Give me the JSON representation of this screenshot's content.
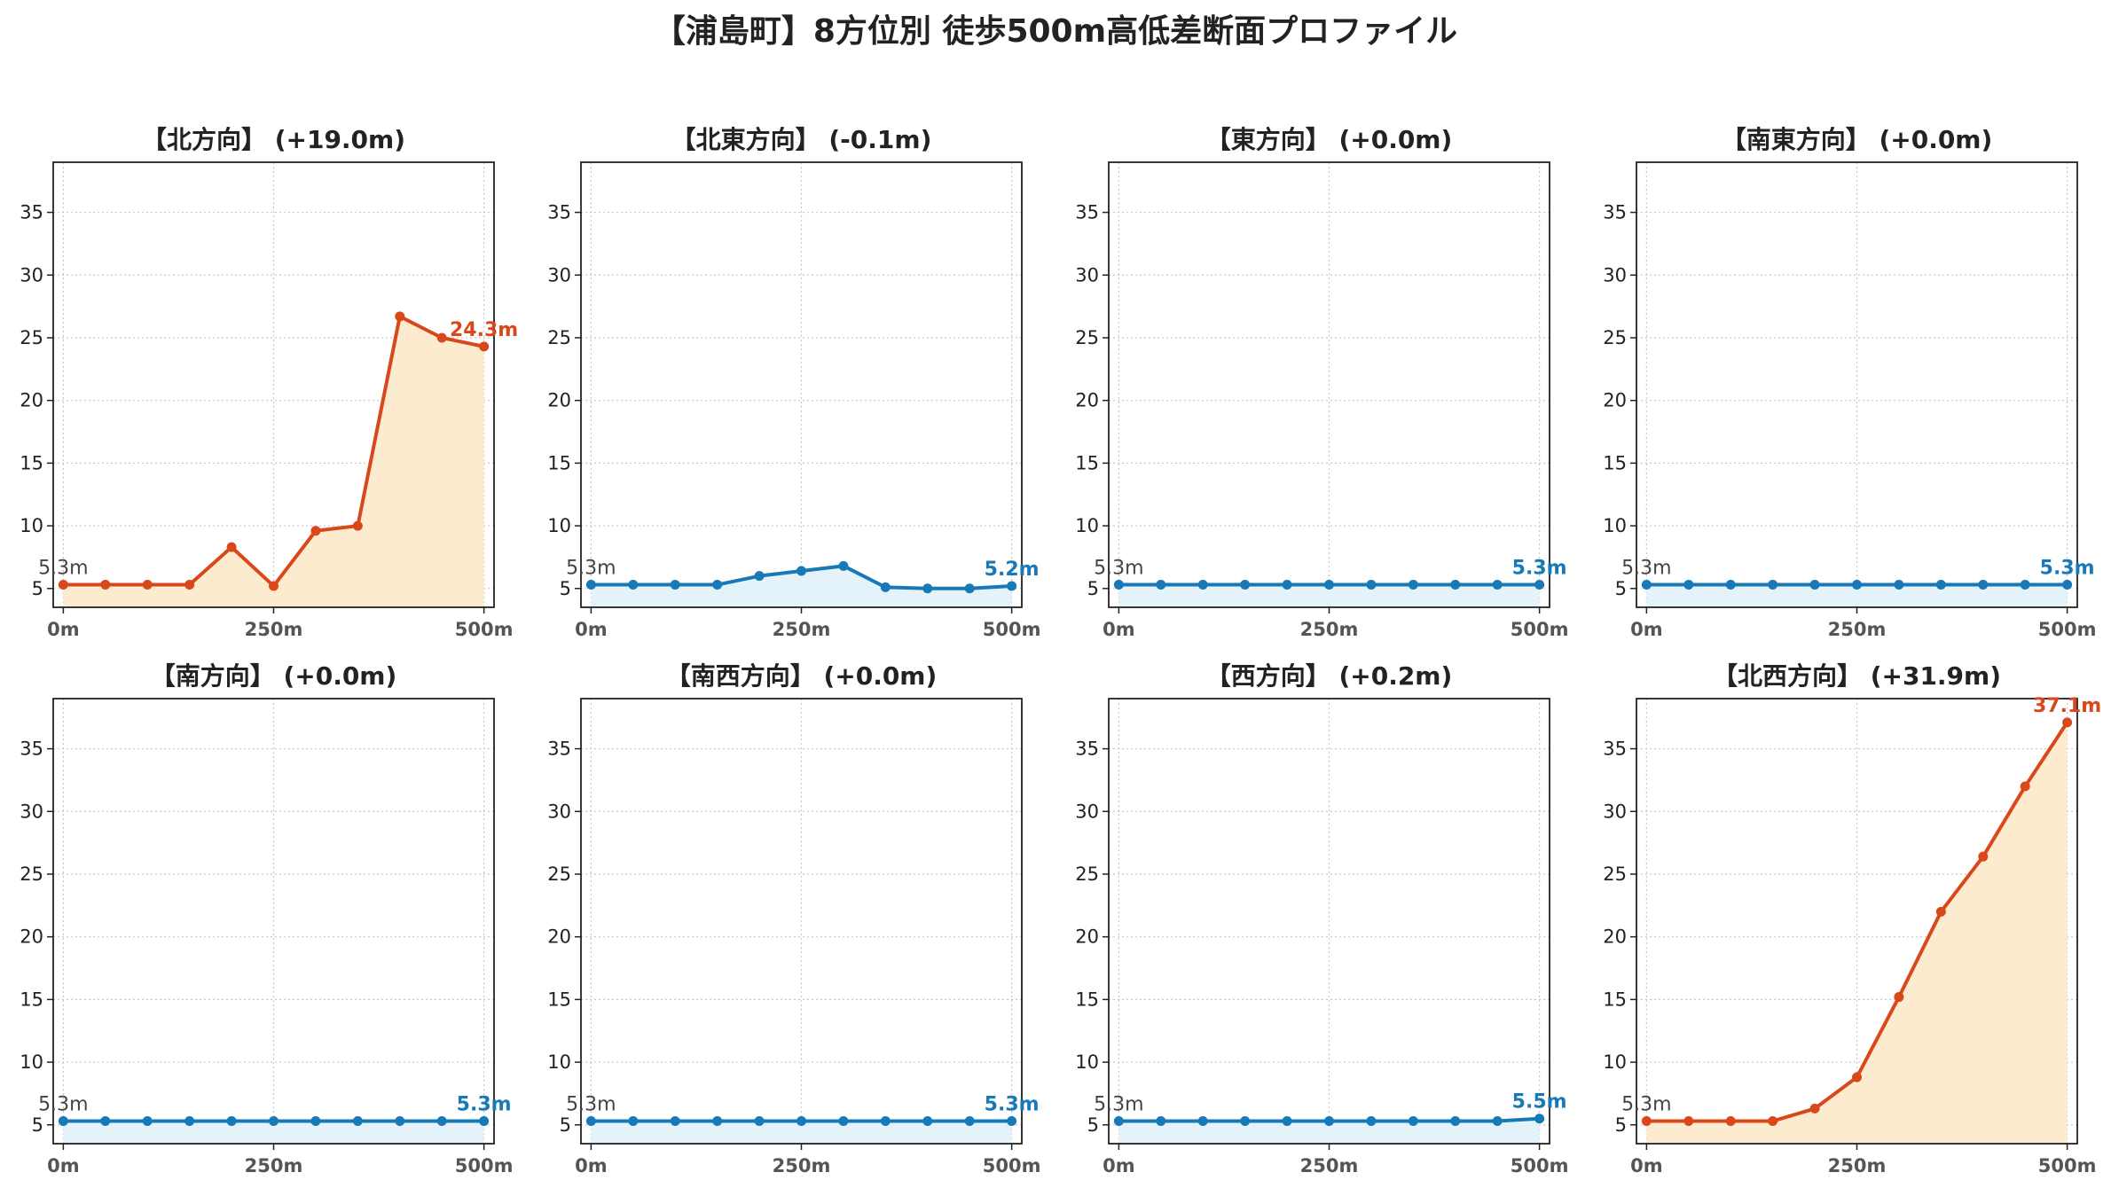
{
  "title": "【浦島町】8方位別 徒歩500m高低差断面プロファイル",
  "colors": {
    "up": "#d9481a",
    "up_fill": "#fdebd0",
    "flat": "#1878b8",
    "flat_fill": "#e4f3fa"
  },
  "chart_data": [
    {
      "type": "line",
      "title": "【北方向】 (+19.0m)",
      "trend": "up",
      "x": [
        0,
        50,
        100,
        150,
        200,
        250,
        300,
        350,
        400,
        450,
        500
      ],
      "y": [
        5.3,
        5.3,
        5.3,
        5.3,
        8.3,
        5.2,
        9.6,
        10.0,
        26.7,
        25.0,
        24.3
      ],
      "start_label": "5.3m",
      "end_label": "24.3m",
      "xticks": [
        "0m",
        "250m",
        "500m"
      ],
      "yticks": [
        5,
        10,
        15,
        20,
        25,
        30,
        35
      ],
      "ylim": [
        3.5,
        39
      ],
      "xlim": [
        -12,
        512
      ],
      "grid": true
    },
    {
      "type": "line",
      "title": "【北東方向】 (-0.1m)",
      "trend": "flat",
      "x": [
        0,
        50,
        100,
        150,
        200,
        250,
        300,
        350,
        400,
        450,
        500
      ],
      "y": [
        5.3,
        5.3,
        5.3,
        5.3,
        6.0,
        6.4,
        6.8,
        5.1,
        5.0,
        5.0,
        5.2
      ],
      "start_label": "5.3m",
      "end_label": "5.2m",
      "xticks": [
        "0m",
        "250m",
        "500m"
      ],
      "yticks": [
        5,
        10,
        15,
        20,
        25,
        30,
        35
      ],
      "ylim": [
        3.5,
        39
      ],
      "xlim": [
        -12,
        512
      ],
      "grid": true
    },
    {
      "type": "line",
      "title": "【東方向】 (+0.0m)",
      "trend": "flat",
      "x": [
        0,
        50,
        100,
        150,
        200,
        250,
        300,
        350,
        400,
        450,
        500
      ],
      "y": [
        5.3,
        5.3,
        5.3,
        5.3,
        5.3,
        5.3,
        5.3,
        5.3,
        5.3,
        5.3,
        5.3
      ],
      "start_label": "5.3m",
      "end_label": "5.3m",
      "xticks": [
        "0m",
        "250m",
        "500m"
      ],
      "yticks": [
        5,
        10,
        15,
        20,
        25,
        30,
        35
      ],
      "ylim": [
        3.5,
        39
      ],
      "xlim": [
        -12,
        512
      ],
      "grid": true
    },
    {
      "type": "line",
      "title": "【南東方向】 (+0.0m)",
      "trend": "flat",
      "x": [
        0,
        50,
        100,
        150,
        200,
        250,
        300,
        350,
        400,
        450,
        500
      ],
      "y": [
        5.3,
        5.3,
        5.3,
        5.3,
        5.3,
        5.3,
        5.3,
        5.3,
        5.3,
        5.3,
        5.3
      ],
      "start_label": "5.3m",
      "end_label": "5.3m",
      "xticks": [
        "0m",
        "250m",
        "500m"
      ],
      "yticks": [
        5,
        10,
        15,
        20,
        25,
        30,
        35
      ],
      "ylim": [
        3.5,
        39
      ],
      "xlim": [
        -12,
        512
      ],
      "grid": true
    },
    {
      "type": "line",
      "title": "【南方向】 (+0.0m)",
      "trend": "flat",
      "x": [
        0,
        50,
        100,
        150,
        200,
        250,
        300,
        350,
        400,
        450,
        500
      ],
      "y": [
        5.3,
        5.3,
        5.3,
        5.3,
        5.3,
        5.3,
        5.3,
        5.3,
        5.3,
        5.3,
        5.3
      ],
      "start_label": "5.3m",
      "end_label": "5.3m",
      "xticks": [
        "0m",
        "250m",
        "500m"
      ],
      "yticks": [
        5,
        10,
        15,
        20,
        25,
        30,
        35
      ],
      "ylim": [
        3.5,
        39
      ],
      "xlim": [
        -12,
        512
      ],
      "grid": true
    },
    {
      "type": "line",
      "title": "【南西方向】 (+0.0m)",
      "trend": "flat",
      "x": [
        0,
        50,
        100,
        150,
        200,
        250,
        300,
        350,
        400,
        450,
        500
      ],
      "y": [
        5.3,
        5.3,
        5.3,
        5.3,
        5.3,
        5.3,
        5.3,
        5.3,
        5.3,
        5.3,
        5.3
      ],
      "start_label": "5.3m",
      "end_label": "5.3m",
      "xticks": [
        "0m",
        "250m",
        "500m"
      ],
      "yticks": [
        5,
        10,
        15,
        20,
        25,
        30,
        35
      ],
      "ylim": [
        3.5,
        39
      ],
      "xlim": [
        -12,
        512
      ],
      "grid": true
    },
    {
      "type": "line",
      "title": "【西方向】 (+0.2m)",
      "trend": "flat",
      "x": [
        0,
        50,
        100,
        150,
        200,
        250,
        300,
        350,
        400,
        450,
        500
      ],
      "y": [
        5.3,
        5.3,
        5.3,
        5.3,
        5.3,
        5.3,
        5.3,
        5.3,
        5.3,
        5.3,
        5.5
      ],
      "start_label": "5.3m",
      "end_label": "5.5m",
      "xticks": [
        "0m",
        "250m",
        "500m"
      ],
      "yticks": [
        5,
        10,
        15,
        20,
        25,
        30,
        35
      ],
      "ylim": [
        3.5,
        39
      ],
      "xlim": [
        -12,
        512
      ],
      "grid": true
    },
    {
      "type": "line",
      "title": "【北西方向】 (+31.9m)",
      "trend": "up",
      "x": [
        0,
        50,
        100,
        150,
        200,
        250,
        300,
        350,
        400,
        450,
        500
      ],
      "y": [
        5.3,
        5.3,
        5.3,
        5.3,
        6.3,
        8.8,
        15.2,
        22.0,
        26.4,
        32.0,
        37.1
      ],
      "start_label": "5.3m",
      "end_label": "37.1m",
      "xticks": [
        "0m",
        "250m",
        "500m"
      ],
      "yticks": [
        5,
        10,
        15,
        20,
        25,
        30,
        35
      ],
      "ylim": [
        3.5,
        39
      ],
      "xlim": [
        -12,
        512
      ],
      "grid": true
    }
  ]
}
